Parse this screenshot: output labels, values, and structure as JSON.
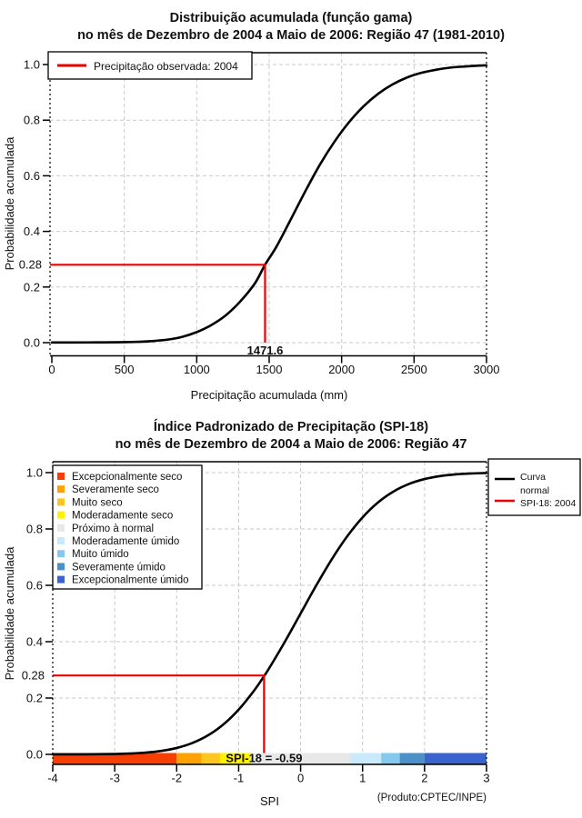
{
  "colors": {
    "red": "#ee0000",
    "curve": "#000000",
    "grid": "#c9c9c9",
    "background": "#ffffff"
  },
  "chart_data": [
    {
      "type": "line",
      "title": "Distribuição acumulada (função gama)",
      "subtitle": "no mês de Dezembro de 2004 a Maio de 2006: Região 47 (1981-2010)",
      "xlabel": "Precipitação acumulada (mm)",
      "ylabel": "Probabilidade acumulada",
      "xlim": [
        0,
        3000
      ],
      "ylim": [
        0,
        1
      ],
      "grid": true,
      "legend_position": "top-left",
      "x_ticks": [
        0,
        500,
        1000,
        1500,
        2000,
        2500,
        3000
      ],
      "x_tick_labels": [
        "0",
        "500",
        "1000",
        "1500",
        "2000",
        "2500",
        "3000"
      ],
      "y_ticks": [
        0,
        0.2,
        0.4,
        0.6,
        0.8,
        1.0
      ],
      "y_tick_labels": [
        "0.0",
        "0.2",
        "0.4",
        "0.6",
        "0.8",
        "1.0"
      ],
      "legend": [
        {
          "label": "Precipitação observada: 2004",
          "color": "#ee0000"
        }
      ],
      "marker": {
        "x": 1471.6,
        "y": 0.28,
        "x_label": "1471.6",
        "y_label": "0.28",
        "color": "#ee0000"
      },
      "series": [
        {
          "color": "#000000",
          "points": [
            [
              0,
              0.0005
            ],
            [
              150,
              0.0005
            ],
            [
              300,
              0.001
            ],
            [
              450,
              0.0015
            ],
            [
              600,
              0.003
            ],
            [
              700,
              0.006
            ],
            [
              800,
              0.011
            ],
            [
              900,
              0.021
            ],
            [
              1000,
              0.038
            ],
            [
              1100,
              0.063
            ],
            [
              1200,
              0.098
            ],
            [
              1300,
              0.148
            ],
            [
              1400,
              0.212
            ],
            [
              1471.6,
              0.28
            ],
            [
              1550,
              0.345
            ],
            [
              1650,
              0.444
            ],
            [
              1750,
              0.545
            ],
            [
              1850,
              0.64
            ],
            [
              1950,
              0.722
            ],
            [
              2050,
              0.792
            ],
            [
              2150,
              0.849
            ],
            [
              2250,
              0.894
            ],
            [
              2350,
              0.928
            ],
            [
              2450,
              0.953
            ],
            [
              2550,
              0.97
            ],
            [
              2650,
              0.981
            ],
            [
              2750,
              0.989
            ],
            [
              2850,
              0.993
            ],
            [
              2950,
              0.996
            ],
            [
              3000,
              0.997
            ]
          ]
        }
      ]
    },
    {
      "type": "line",
      "title": "Índice Padronizado de Precipitação (SPI-18)",
      "subtitle": "no mês de Dezembro de 2004 a Maio de 2006: Região 47",
      "xlabel": "SPI",
      "ylabel": "Probabilidade acumulada",
      "credit": "(Produto:CPTEC/INPE)",
      "xlim": [
        -4,
        3
      ],
      "ylim": [
        0,
        1
      ],
      "grid": true,
      "x_ticks": [
        -4,
        -3,
        -2,
        -1,
        0,
        1,
        2,
        3
      ],
      "x_tick_labels": [
        "-4",
        "-3",
        "-2",
        "-1",
        "0",
        "1",
        "2",
        "3"
      ],
      "y_ticks": [
        0,
        0.2,
        0.4,
        0.6,
        0.8,
        1.0
      ],
      "y_tick_labels": [
        "0.0",
        "0.2",
        "0.4",
        "0.6",
        "0.8",
        "1.0"
      ],
      "legend_right": [
        {
          "label_lines": [
            "Curva",
            "normal"
          ],
          "color": "#000000"
        },
        {
          "label_lines": [
            "SPI-18: 2004"
          ],
          "color": "#ee0000"
        }
      ],
      "marker": {
        "x": -0.59,
        "y": 0.28,
        "y_label": "0.28",
        "annotation": "SPI-18 = -0.59",
        "color": "#ee0000"
      },
      "categories": [
        {
          "label": "Excepcionalmente seco",
          "color": "#f93e05",
          "range": [
            -4,
            -2
          ]
        },
        {
          "label": "Severamente seco",
          "color": "#ffa200",
          "range": [
            -2,
            -1.6
          ]
        },
        {
          "label": "Muito seco",
          "color": "#ffc61e",
          "range": [
            -1.6,
            -1.3
          ]
        },
        {
          "label": "Moderadamente seco",
          "color": "#fff200",
          "range": [
            -1.3,
            -0.8
          ]
        },
        {
          "label": "Próximo à normal",
          "color": "#e8e8e8",
          "range": [
            -0.8,
            0.8
          ]
        },
        {
          "label": "Moderadamente úmido",
          "color": "#c9eafa",
          "range": [
            0.8,
            1.3
          ]
        },
        {
          "label": "Muito úmido",
          "color": "#85c9ef",
          "range": [
            1.3,
            1.6
          ]
        },
        {
          "label": "Severamente úmido",
          "color": "#4b90c8",
          "range": [
            1.6,
            2
          ]
        },
        {
          "label": "Excepcionalmente úmido",
          "color": "#3b63cd",
          "range": [
            2,
            3
          ]
        }
      ],
      "series": [
        {
          "name": "Curva normal",
          "color": "#000000",
          "points": [
            [
              -4,
              0.0001
            ],
            [
              -3.5,
              0.0002
            ],
            [
              -3,
              0.0013
            ],
            [
              -2.75,
              0.003
            ],
            [
              -2.5,
              0.0062
            ],
            [
              -2.25,
              0.0122
            ],
            [
              -2,
              0.0228
            ],
            [
              -1.75,
              0.0401
            ],
            [
              -1.5,
              0.0668
            ],
            [
              -1.25,
              0.1056
            ],
            [
              -1,
              0.1587
            ],
            [
              -0.75,
              0.2266
            ],
            [
              -0.59,
              0.2776
            ],
            [
              -0.5,
              0.3085
            ],
            [
              -0.25,
              0.4013
            ],
            [
              0,
              0.5
            ],
            [
              0.25,
              0.5987
            ],
            [
              0.5,
              0.6915
            ],
            [
              0.75,
              0.7734
            ],
            [
              1,
              0.8413
            ],
            [
              1.25,
              0.8944
            ],
            [
              1.5,
              0.9332
            ],
            [
              1.75,
              0.9599
            ],
            [
              2,
              0.9772
            ],
            [
              2.25,
              0.9878
            ],
            [
              2.5,
              0.9938
            ],
            [
              2.75,
              0.997
            ],
            [
              3,
              0.9987
            ]
          ]
        }
      ]
    }
  ]
}
